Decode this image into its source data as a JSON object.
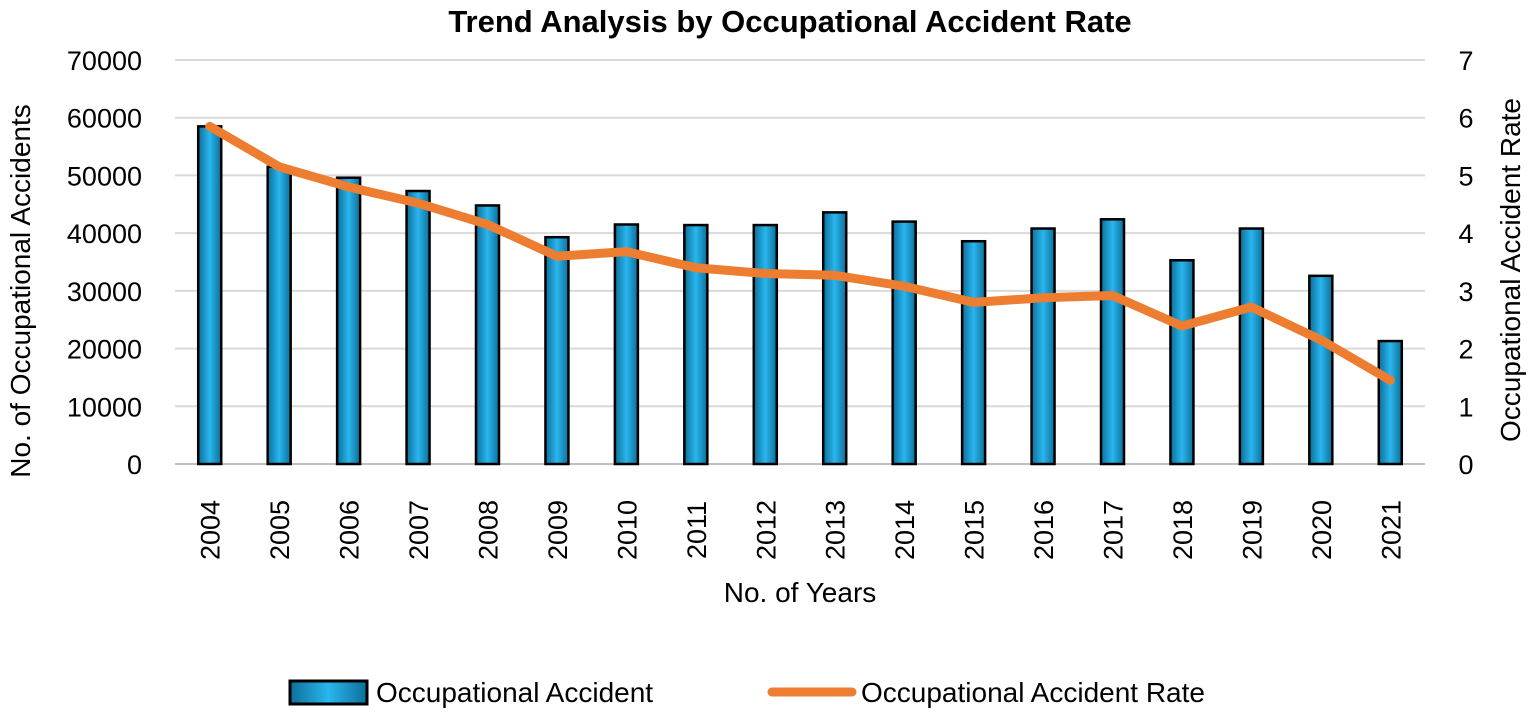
{
  "chart_data": {
    "type": "bar",
    "title": "Trend Analysis by Occupational Accident Rate",
    "xlabel": "No. of Years",
    "ylabel": "No. of Occupational Accidents",
    "y2label": "Occupational Accident Rate",
    "categories": [
      "2004",
      "2005",
      "2006",
      "2007",
      "2008",
      "2009",
      "2010",
      "2011",
      "2012",
      "2013",
      "2014",
      "2015",
      "2016",
      "2017",
      "2018",
      "2019",
      "2020",
      "2021"
    ],
    "ylim": [
      0,
      70000
    ],
    "y_ticks": [
      "0",
      "10000",
      "20000",
      "30000",
      "40000",
      "50000",
      "60000",
      "70000"
    ],
    "y2lim": [
      0,
      7
    ],
    "y2_ticks": [
      "0",
      "1",
      "2",
      "3",
      "4",
      "5",
      "6",
      "7"
    ],
    "grid": true,
    "legend_position": "bottom",
    "series": [
      {
        "name": "Occupational Accident",
        "type": "bar",
        "axis": "left",
        "color": "#1aa3dc",
        "values": [
          58500,
          51500,
          49600,
          47300,
          44800,
          39300,
          41500,
          41400,
          41400,
          43600,
          42000,
          38600,
          40800,
          42400,
          35300,
          40800,
          32600,
          21300
        ]
      },
      {
        "name": "Occupational Accident Rate",
        "type": "line",
        "axis": "right",
        "color": "#ed7d31",
        "values": [
          5.85,
          5.15,
          4.8,
          4.52,
          4.15,
          3.6,
          3.68,
          3.4,
          3.3,
          3.27,
          3.08,
          2.8,
          2.88,
          2.92,
          2.39,
          2.72,
          2.15,
          1.45
        ]
      }
    ]
  }
}
